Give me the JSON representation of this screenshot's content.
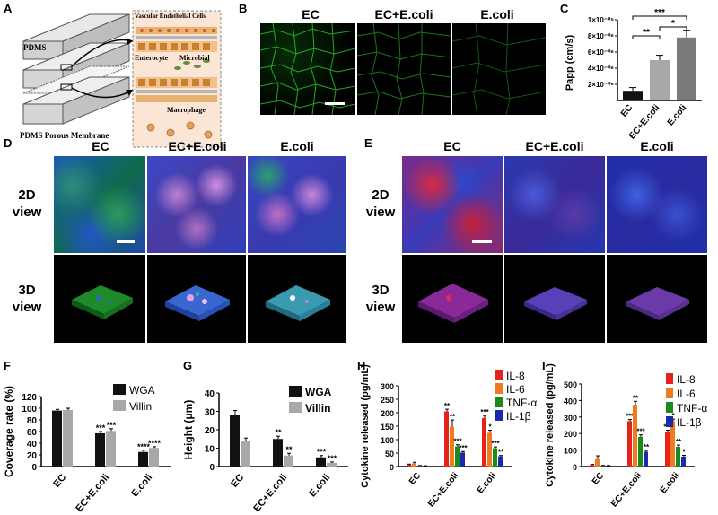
{
  "panels": {
    "A": {
      "label": "A",
      "pdms": "PDMS",
      "membrane": "PDMS Porous Membrane",
      "inset": {
        "vascular": "Vascular Endothelial Cells",
        "enterocyte": "Enterocyte",
        "microbial": "Microbial",
        "macrophage": "Macrophage"
      }
    },
    "B": {
      "label": "B",
      "headers": [
        "EC",
        "EC+E.coli",
        "E.coli"
      ]
    },
    "C": {
      "label": "C",
      "ylabel": "Papp (cm/s)",
      "sig": [
        "***",
        "**",
        "*"
      ]
    },
    "D": {
      "label": "D",
      "headers": [
        "EC",
        "EC+E.coli",
        "E.coli"
      ],
      "view2d": [
        "2D",
        "view"
      ],
      "view3d": [
        "3D",
        "view"
      ]
    },
    "E": {
      "label": "E",
      "headers": [
        "EC",
        "EC+E.coli",
        "E.coli"
      ],
      "view2d": [
        "2D",
        "view"
      ],
      "view3d": [
        "3D",
        "view"
      ]
    },
    "F": {
      "label": "F"
    },
    "G": {
      "label": "G"
    },
    "H": {
      "label": "H"
    },
    "I": {
      "label": "I"
    }
  },
  "colors": {
    "wga": "#1a7a1a",
    "nucleus": "#2a3fd0",
    "membrane": "#d8202a",
    "villin": "#d070c0"
  },
  "chart_data": [
    {
      "id": "C",
      "type": "bar",
      "categories": [
        "EC",
        "EC+E.coli",
        "E.coli"
      ],
      "values": [
        1.2e-06,
        5e-06,
        7.8e-06
      ],
      "errors": [
        4e-07,
        6e-07,
        9e-07
      ],
      "ylim": [
        0,
        1e-05
      ],
      "yticks": [
        "2×10⁻⁰⁶",
        "4×10⁻⁰⁶",
        "6×10⁻⁰⁶",
        "8×10⁻⁰⁶",
        "1×10⁻⁰⁵"
      ],
      "ylabel": "Papp (cm/s)",
      "colors": [
        "#111111",
        "#a8a8a8",
        "#7a7a7a"
      ],
      "significance": [
        {
          "pair": [
            0,
            2
          ],
          "text": "***"
        },
        {
          "pair": [
            0,
            1
          ],
          "text": "**"
        },
        {
          "pair": [
            1,
            2
          ],
          "text": "*"
        }
      ]
    },
    {
      "id": "F",
      "type": "bar",
      "categories": [
        "EC",
        "EC+E.coli",
        "E.coli"
      ],
      "series": [
        {
          "name": "WGA",
          "values": [
            96,
            57,
            25
          ],
          "errors": [
            2,
            3,
            3
          ],
          "color": "#111111",
          "sig": [
            "",
            "***",
            "****"
          ]
        },
        {
          "name": "Villin",
          "values": [
            97,
            61,
            32
          ],
          "errors": [
            3,
            4,
            2
          ],
          "color": "#a8a8a8",
          "sig": [
            "",
            "***",
            "****"
          ]
        }
      ],
      "ylim": [
        0,
        120
      ],
      "yticks": [
        0,
        20,
        40,
        60,
        80,
        100,
        120
      ],
      "ylabel": "Coverage rate (%)"
    },
    {
      "id": "G",
      "type": "bar",
      "categories": [
        "EC",
        "EC+E.coli",
        "E.coli"
      ],
      "series": [
        {
          "name": "WGA",
          "values": [
            28,
            15,
            5
          ],
          "errors": [
            2.5,
            1.5,
            1
          ],
          "color": "#111111",
          "sig": [
            "",
            "**",
            "***"
          ]
        },
        {
          "name": "Villin",
          "values": [
            14,
            6,
            2
          ],
          "errors": [
            1.5,
            1.2,
            0.5
          ],
          "color": "#a8a8a8",
          "sig": [
            "",
            "**",
            "***"
          ]
        }
      ],
      "ylim": [
        0,
        40
      ],
      "yticks": [
        0,
        10,
        20,
        30,
        40
      ],
      "ylabel": "Height (μm)"
    },
    {
      "id": "H",
      "type": "bar",
      "categories": [
        "EC",
        "EC+E.coli",
        "E.coli"
      ],
      "series": [
        {
          "name": "IL-8",
          "values": [
            7,
            205,
            180
          ],
          "errors": [
            2,
            8,
            10
          ],
          "color": "#e5221c",
          "sig": [
            "",
            "**",
            "***"
          ]
        },
        {
          "name": "IL-6",
          "values": [
            12,
            148,
            125
          ],
          "errors": [
            4,
            25,
            10
          ],
          "color": "#f07a20",
          "sig": [
            "",
            "**",
            "*"
          ]
        },
        {
          "name": "TNF-α",
          "values": [
            3,
            75,
            68
          ],
          "errors": [
            1,
            6,
            5
          ],
          "color": "#1a8a1a",
          "sig": [
            "",
            "***",
            "***"
          ]
        },
        {
          "name": "IL-1β",
          "values": [
            2,
            52,
            38
          ],
          "errors": [
            1,
            4,
            3
          ],
          "color": "#1a2aa8",
          "sig": [
            "",
            "***",
            "**"
          ]
        }
      ],
      "ylim": [
        0,
        300
      ],
      "yticks": [
        0,
        50,
        100,
        150,
        200,
        250,
        300
      ],
      "ylabel": "Cytokine released (pg/mL)"
    },
    {
      "id": "I",
      "type": "bar",
      "categories": [
        "EC",
        "EC+E.coli",
        "E.coli"
      ],
      "series": [
        {
          "name": "IL-8",
          "values": [
            10,
            275,
            210
          ],
          "errors": [
            3,
            10,
            10
          ],
          "color": "#e5221c",
          "sig": [
            "",
            "***",
            "***"
          ]
        },
        {
          "name": "IL-6",
          "values": [
            45,
            375,
            275
          ],
          "errors": [
            20,
            20,
            12
          ],
          "color": "#f07a20",
          "sig": [
            "",
            "**",
            "*"
          ]
        },
        {
          "name": "TNF-α",
          "values": [
            5,
            180,
            120
          ],
          "errors": [
            2,
            12,
            10
          ],
          "color": "#1a8a1a",
          "sig": [
            "",
            "***",
            "**"
          ]
        },
        {
          "name": "IL-1β",
          "values": [
            5,
            90,
            60
          ],
          "errors": [
            2,
            8,
            8
          ],
          "color": "#1a2aa8",
          "sig": [
            "",
            "**",
            "*"
          ]
        }
      ],
      "ylim": [
        0,
        500
      ],
      "yticks": [
        0,
        100,
        200,
        300,
        400,
        500
      ],
      "ylabel": "Cytokine released (pg/mL)"
    }
  ]
}
